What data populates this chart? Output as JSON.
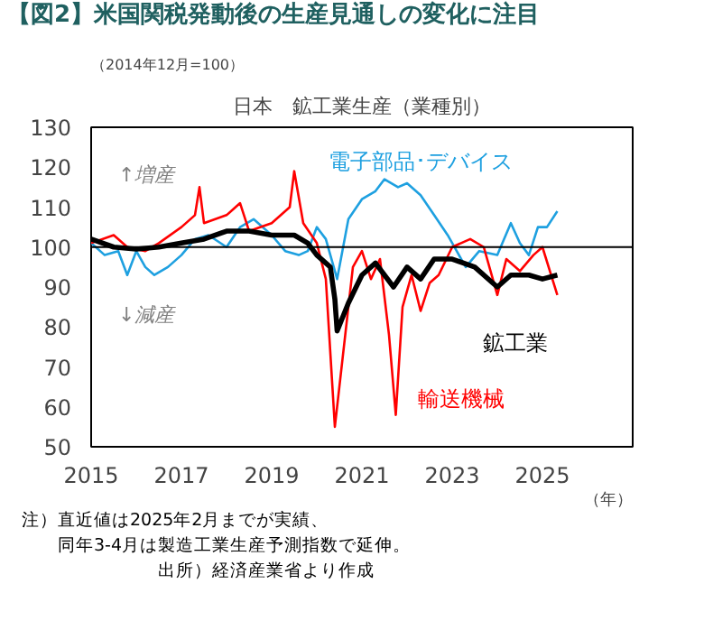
{
  "chart_data": {
    "type": "line",
    "title": "【図2】米国関税発動後の生産見通しの変化に注目",
    "subtitle": "日本　鉱工業生産（業種別）",
    "ylabel": "（2014年12月=100）",
    "xlabel": "（年）",
    "xlim": [
      2015,
      2027
    ],
    "xticks": [
      2015,
      2017,
      2019,
      2021,
      2023,
      2025
    ],
    "ylim": [
      50,
      130
    ],
    "yticks": [
      50,
      60,
      70,
      80,
      90,
      100,
      110,
      120,
      130
    ],
    "grid": false,
    "marker": "none",
    "line_style": "solid",
    "ref_lines": [
      {
        "axis": "y",
        "value": 100,
        "color": "#000000"
      }
    ],
    "annotations": [
      "↑増産",
      "↓減産",
      "注）直近値は2025年2月までが実績、",
      "同年3-4月は製造工業生産予測指数で延伸。",
      "出所）経済産業省より作成"
    ],
    "series": [
      {
        "name": "電子部品･デバイス",
        "color": "#1ea0e0",
        "x": [
          2015,
          2015.3,
          2015.6,
          2015.8,
          2016,
          2016.2,
          2016.4,
          2016.7,
          2017,
          2017.3,
          2017.6,
          2018,
          2018.3,
          2018.6,
          2019,
          2019.3,
          2019.6,
          2019.8,
          2020,
          2020.2,
          2020.45,
          2020.7,
          2021,
          2021.3,
          2021.5,
          2021.8,
          2022,
          2022.3,
          2022.6,
          2022.9,
          2023.1,
          2023.3,
          2023.6,
          2024,
          2024.3,
          2024.5,
          2024.7,
          2024.9,
          2025.1,
          2025.33
        ],
        "values": [
          101,
          98,
          99,
          93,
          99,
          95,
          93,
          95,
          98,
          102,
          103,
          100,
          105,
          107,
          103,
          99,
          98,
          99,
          105,
          102,
          92,
          107,
          112,
          114,
          117,
          115,
          116,
          113,
          108,
          103,
          99,
          95,
          99,
          98,
          106,
          101,
          98,
          105,
          105,
          109
        ]
      },
      {
        "name": "鉱工業",
        "color": "#000000",
        "x": [
          2015,
          2015.5,
          2016,
          2016.5,
          2017,
          2017.5,
          2018,
          2018.5,
          2019,
          2019.5,
          2019.8,
          2020,
          2020.3,
          2020.4,
          2020.45,
          2020.7,
          2021,
          2021.3,
          2021.7,
          2022,
          2022.3,
          2022.6,
          2023,
          2023.5,
          2024,
          2024.3,
          2024.7,
          2025,
          2025.33
        ],
        "values": [
          102,
          100,
          99.5,
          100,
          101,
          102,
          104,
          104,
          103,
          103,
          101,
          98,
          95,
          87,
          79,
          86,
          93,
          96,
          90,
          95,
          92,
          97,
          97,
          95,
          90,
          93,
          93,
          92,
          93
        ]
      },
      {
        "name": "輸送機械",
        "color": "#ff0000",
        "x": [
          2015,
          2015.5,
          2015.8,
          2016.2,
          2016.5,
          2017,
          2017.3,
          2017.4,
          2017.5,
          2018,
          2018.3,
          2018.5,
          2019,
          2019.4,
          2019.5,
          2019.7,
          2020,
          2020.2,
          2020.4,
          2020.6,
          2020.8,
          2021,
          2021.2,
          2021.4,
          2021.6,
          2021.75,
          2021.9,
          2022.1,
          2022.3,
          2022.5,
          2022.7,
          2023,
          2023.4,
          2023.7,
          2024,
          2024.2,
          2024.5,
          2024.8,
          2025,
          2025.33
        ],
        "values": [
          101,
          103,
          100,
          99,
          101,
          105,
          108,
          115,
          106,
          108,
          111,
          104,
          106,
          110,
          119,
          106,
          101,
          92,
          55,
          75,
          95,
          99,
          92,
          97,
          78,
          58,
          85,
          93,
          84,
          91,
          93,
          100,
          102,
          100,
          88,
          97,
          94,
          98,
          100,
          88
        ]
      }
    ]
  }
}
